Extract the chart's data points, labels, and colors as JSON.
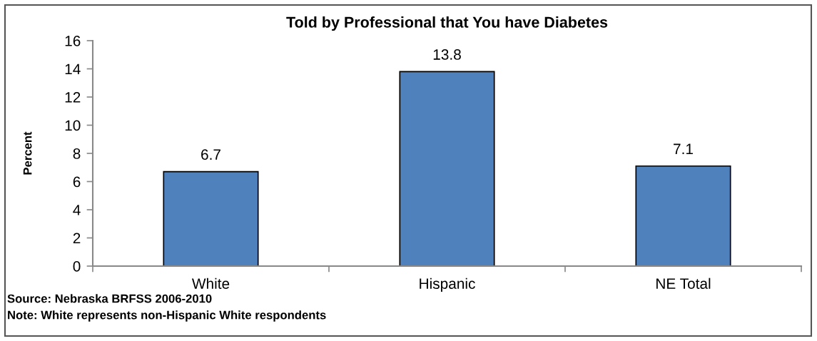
{
  "chart_data": {
    "type": "bar",
    "title": "Told by Professional that You have Diabetes",
    "ylabel": "Percent",
    "categories": [
      "White",
      "Hispanic",
      "NE Total"
    ],
    "values": [
      6.7,
      13.8,
      7.1
    ],
    "color": "#4f81bd",
    "ylim": [
      0,
      16
    ],
    "yticks": [
      0,
      2,
      4,
      6,
      8,
      10,
      12,
      14,
      16
    ],
    "grid": false,
    "data_labels": true,
    "annotations": [
      "Source: Nebraska BRFSS 2006-2010",
      "Note: White represents non-Hispanic White respondents"
    ]
  }
}
